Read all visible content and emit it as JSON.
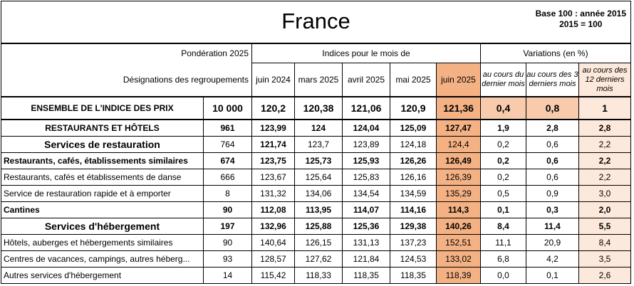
{
  "title": "France",
  "base_note": [
    "Base 100 : année 2015",
    "2015 = 100"
  ],
  "headers": {
    "ponderation": "Pondération 2025",
    "designations": "Désignations des regroupements",
    "indices_group": "Indices pour le mois de",
    "variations_group": "Variations (en %)",
    "months": [
      "juin 2024",
      "mars 2025",
      "avril 2025",
      "mai 2025",
      "juin 2025"
    ],
    "variations": [
      "au cours du dernier mois",
      "au cours des 3 derniers mois",
      "au cours des 12 derniers mois"
    ]
  },
  "total": {
    "label": "ENSEMBLE DE L'INDICE DES PRIX",
    "weight": "10 000",
    "values": [
      "120,2",
      "120,38",
      "121,06",
      "120,9",
      "121,36"
    ],
    "vars": [
      "0,4",
      "0,8",
      "1"
    ]
  },
  "rows": [
    {
      "label": "RESTAURANTS ET HÔTELS",
      "weight": "961",
      "values": [
        "123,99",
        "124",
        "124,04",
        "125,09",
        "127,47"
      ],
      "vars": [
        "1,9",
        "2,8",
        "2,8"
      ]
    },
    {
      "label": "Services de restauration",
      "weight": "764",
      "values": [
        "121,74",
        "123,7",
        "123,89",
        "124,18",
        "124,4"
      ],
      "vars": [
        "0,2",
        "0,6",
        "2,2"
      ]
    },
    {
      "label": "Restaurants, cafés, établissements similaires",
      "weight": "674",
      "values": [
        "123,75",
        "125,73",
        "125,93",
        "126,26",
        "126,49"
      ],
      "vars": [
        "0,2",
        "0,6",
        "2,2"
      ]
    },
    {
      "label": "Restaurants, cafés et établissements de danse",
      "weight": "666",
      "values": [
        "123,67",
        "125,64",
        "125,83",
        "126,16",
        "126,39"
      ],
      "vars": [
        "0,2",
        "0,6",
        "2,2"
      ]
    },
    {
      "label": "Service de restauration rapide et à emporter",
      "weight": "8",
      "values": [
        "131,32",
        "134,06",
        "134,54",
        "134,59",
        "135,29"
      ],
      "vars": [
        "0,5",
        "0,9",
        "3,0"
      ]
    },
    {
      "label": "Cantines",
      "weight": "90",
      "values": [
        "112,08",
        "113,95",
        "114,07",
        "114,16",
        "114,3"
      ],
      "vars": [
        "0,1",
        "0,3",
        "2,0"
      ]
    },
    {
      "label": "Services d'hébergement",
      "weight": "197",
      "values": [
        "132,96",
        "125,88",
        "125,36",
        "129,38",
        "140,26"
      ],
      "vars": [
        "8,4",
        "11,4",
        "5,5"
      ]
    },
    {
      "label": "Hôtels, auberges et hébergements similaires",
      "weight": "90",
      "values": [
        "140,64",
        "126,15",
        "131,13",
        "137,23",
        "152,51"
      ],
      "vars": [
        "11,1",
        "20,9",
        "8,4"
      ]
    },
    {
      "label": "Centres de vacances, campings, autres héberg...",
      "weight": "93",
      "values": [
        "128,57",
        "127,62",
        "121,84",
        "124,53",
        "133,02"
      ],
      "vars": [
        "6,8",
        "4,2",
        "3,5"
      ]
    },
    {
      "label": "Autres services d'hébergement",
      "weight": "14",
      "values": [
        "115,42",
        "118,33",
        "118,35",
        "118,35",
        "118,39"
      ],
      "vars": [
        "0,0",
        "0,1",
        "2,6"
      ]
    }
  ]
}
